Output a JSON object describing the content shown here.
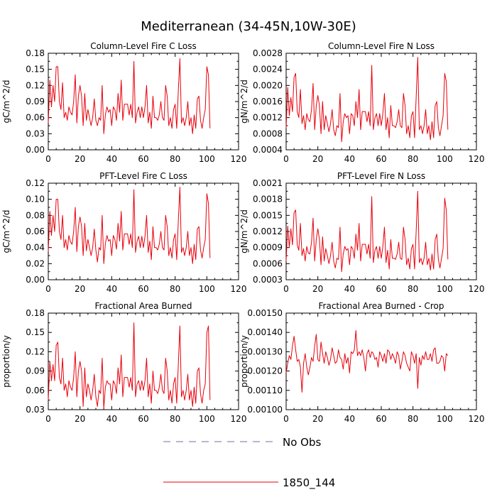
{
  "figure_title": "Mediterranean (34-45N,10W-30E)",
  "legend": {
    "items": [
      {
        "label": "No Obs",
        "style": "dashed",
        "color": "#6f6fa8"
      },
      {
        "label": "1850_144",
        "style": "solid",
        "color": "#e8000b"
      }
    ]
  },
  "colors": {
    "series": "#e8000b",
    "axis": "#000000"
  },
  "chart_data": [
    {
      "type": "line",
      "title": "Column-Level Fire C Loss",
      "ylabel": "gC/m^2/d",
      "xlim": [
        0,
        120
      ],
      "ylim": [
        0.0,
        0.18
      ],
      "xticks": [
        "0",
        "20",
        "40",
        "60",
        "80",
        "100",
        "120"
      ],
      "yticks": [
        "0.00",
        "0.03",
        "0.06",
        "0.09",
        "0.12",
        "0.15",
        "0.18"
      ],
      "series": [
        {
          "values": [
            0.05,
            0.13,
            0.08,
            0.12,
            0.09,
            0.155,
            0.155,
            0.09,
            0.075,
            0.125,
            0.06,
            0.07,
            0.055,
            0.08,
            0.07,
            0.065,
            0.09,
            0.14,
            0.05,
            0.1,
            0.12,
            0.1,
            0.045,
            0.105,
            0.055,
            0.075,
            0.06,
            0.045,
            0.06,
            0.095,
            0.055,
            0.045,
            0.06,
            0.055,
            0.12,
            0.03,
            0.065,
            0.08,
            0.07,
            0.075,
            0.045,
            0.08,
            0.075,
            0.055,
            0.105,
            0.07,
            0.13,
            0.055,
            0.085,
            0.085,
            0.085,
            0.065,
            0.085,
            0.06,
            0.165,
            0.05,
            0.07,
            0.08,
            0.06,
            0.08,
            0.06,
            0.08,
            0.12,
            0.05,
            0.07,
            0.04,
            0.1,
            0.06,
            0.06,
            0.055,
            0.065,
            0.09,
            0.06,
            0.055,
            0.12,
            0.1,
            0.045,
            0.06,
            0.04,
            0.075,
            0.085,
            0.04,
            0.11,
            0.17,
            0.05,
            0.06,
            0.045,
            0.06,
            0.09,
            0.045,
            0.06,
            0.03,
            0.065,
            0.04,
            0.095,
            0.1,
            0.055,
            0.04,
            0.06,
            0.075,
            0.155,
            0.14,
            0.04
          ]
        }
      ]
    },
    {
      "type": "line",
      "title": "Column-Level Fire N Loss",
      "ylabel": "gN/m^2/d",
      "xlim": [
        0,
        120
      ],
      "ylim": [
        0.0004,
        0.0028
      ],
      "xticks": [
        "0",
        "20",
        "40",
        "60",
        "80",
        "100",
        "120"
      ],
      "yticks": [
        "0.0004",
        "0.0008",
        "0.0012",
        "0.0016",
        "0.0020",
        "0.0024",
        "0.0028"
      ],
      "series": [
        {
          "values": [
            0.00095,
            0.00195,
            0.00125,
            0.0017,
            0.00135,
            0.0022,
            0.0023,
            0.00135,
            0.0012,
            0.0019,
            0.00105,
            0.00125,
            0.0009,
            0.0013,
            0.00115,
            0.0011,
            0.0014,
            0.00205,
            0.0009,
            0.0015,
            0.00175,
            0.0015,
            0.0008,
            0.0016,
            0.0009,
            0.00125,
            0.00105,
            0.00085,
            0.00105,
            0.0014,
            0.0009,
            0.00075,
            0.001,
            0.00095,
            0.0018,
            0.0006,
            0.0011,
            0.0013,
            0.0012,
            0.00125,
            0.0008,
            0.0013,
            0.00125,
            0.001,
            0.0016,
            0.0012,
            0.0019,
            0.0009,
            0.00135,
            0.00135,
            0.00135,
            0.0011,
            0.00135,
            0.001,
            0.0025,
            0.0009,
            0.0012,
            0.0013,
            0.001,
            0.0013,
            0.001,
            0.0013,
            0.0018,
            0.0009,
            0.0012,
            0.0007,
            0.0015,
            0.001,
            0.001,
            0.00095,
            0.0011,
            0.0014,
            0.001,
            0.00095,
            0.0018,
            0.0015,
            0.0008,
            0.001,
            0.0007,
            0.00125,
            0.00135,
            0.0007,
            0.0017,
            0.0027,
            0.0009,
            0.001,
            0.0008,
            0.001,
            0.0014,
            0.0008,
            0.001,
            0.00065,
            0.0011,
            0.0007,
            0.0015,
            0.0016,
            0.00095,
            0.00075,
            0.001,
            0.00125,
            0.0023,
            0.0021,
            0.0009
          ]
        }
      ]
    },
    {
      "type": "line",
      "title": "PFT-Level Fire C Loss",
      "ylabel": "gC/m^2/d",
      "xlim": [
        0,
        120
      ],
      "ylim": [
        0.0,
        0.12
      ],
      "xticks": [
        "0",
        "20",
        "40",
        "60",
        "80",
        "100",
        "120"
      ],
      "yticks": [
        "0.00",
        "0.02",
        "0.04",
        "0.06",
        "0.08",
        "0.10",
        "0.12"
      ],
      "series": [
        {
          "values": [
            0.035,
            0.085,
            0.055,
            0.08,
            0.06,
            0.1,
            0.1,
            0.06,
            0.05,
            0.08,
            0.04,
            0.05,
            0.037,
            0.055,
            0.047,
            0.044,
            0.06,
            0.09,
            0.035,
            0.066,
            0.078,
            0.066,
            0.03,
            0.07,
            0.036,
            0.05,
            0.04,
            0.03,
            0.04,
            0.063,
            0.037,
            0.022,
            0.04,
            0.037,
            0.08,
            0.02,
            0.045,
            0.055,
            0.048,
            0.05,
            0.03,
            0.055,
            0.05,
            0.038,
            0.07,
            0.048,
            0.085,
            0.037,
            0.057,
            0.057,
            0.057,
            0.044,
            0.057,
            0.04,
            0.112,
            0.034,
            0.048,
            0.054,
            0.04,
            0.054,
            0.04,
            0.054,
            0.08,
            0.034,
            0.048,
            0.025,
            0.066,
            0.04,
            0.04,
            0.037,
            0.044,
            0.06,
            0.04,
            0.037,
            0.08,
            0.066,
            0.03,
            0.04,
            0.027,
            0.05,
            0.057,
            0.025,
            0.073,
            0.115,
            0.034,
            0.04,
            0.03,
            0.04,
            0.06,
            0.03,
            0.04,
            0.02,
            0.044,
            0.025,
            0.063,
            0.066,
            0.037,
            0.027,
            0.04,
            0.05,
            0.107,
            0.095,
            0.027
          ]
        }
      ]
    },
    {
      "type": "line",
      "title": "PFT-Level Fire N Loss",
      "ylabel": "gN/m^2/d",
      "xlim": [
        0,
        120
      ],
      "ylim": [
        0.0003,
        0.0021
      ],
      "xticks": [
        "0",
        "20",
        "40",
        "60",
        "80",
        "100",
        "120"
      ],
      "yticks": [
        "0.0003",
        "0.0006",
        "0.0009",
        "0.0012",
        "0.0015",
        "0.0018",
        "0.0021"
      ],
      "series": [
        {
          "values": [
            0.00065,
            0.0013,
            0.0009,
            0.00125,
            0.00095,
            0.00155,
            0.0016,
            0.00095,
            0.00085,
            0.00135,
            0.00075,
            0.00088,
            0.00065,
            0.00092,
            0.0008,
            0.00078,
            0.001,
            0.00145,
            0.00065,
            0.00105,
            0.00125,
            0.00105,
            0.00058,
            0.0011,
            0.00065,
            0.00088,
            0.00075,
            0.0006,
            0.00075,
            0.001,
            0.00065,
            0.00052,
            0.0007,
            0.00068,
            0.00128,
            0.00045,
            0.00078,
            0.00092,
            0.00085,
            0.00088,
            0.00058,
            0.00092,
            0.00088,
            0.0007,
            0.00115,
            0.00085,
            0.00135,
            0.00065,
            0.00096,
            0.00096,
            0.00096,
            0.00078,
            0.00096,
            0.0007,
            0.00185,
            0.00062,
            0.00085,
            0.00092,
            0.0007,
            0.00092,
            0.0007,
            0.00092,
            0.00128,
            0.00062,
            0.00085,
            0.0005,
            0.00105,
            0.0007,
            0.0007,
            0.00068,
            0.00078,
            0.001,
            0.0007,
            0.00068,
            0.00128,
            0.00105,
            0.00058,
            0.0007,
            0.0005,
            0.00088,
            0.00096,
            0.0005,
            0.0012,
            0.00195,
            0.00062,
            0.0007,
            0.00058,
            0.0007,
            0.001,
            0.00058,
            0.0007,
            0.00048,
            0.00078,
            0.0005,
            0.00105,
            0.00115,
            0.00068,
            0.00052,
            0.0007,
            0.00088,
            0.00182,
            0.0016,
            0.00068
          ]
        }
      ]
    },
    {
      "type": "line",
      "title": "Fractional Area Burned",
      "ylabel": "proportion/y",
      "xlim": [
        0,
        120
      ],
      "ylim": [
        0.03,
        0.18
      ],
      "xticks": [
        "0",
        "20",
        "40",
        "60",
        "80",
        "100",
        "120"
      ],
      "yticks": [
        "0.03",
        "0.06",
        "0.09",
        "0.12",
        "0.15",
        "0.18"
      ],
      "series": [
        {
          "values": [
            0.045,
            0.105,
            0.075,
            0.1,
            0.075,
            0.13,
            0.135,
            0.08,
            0.07,
            0.11,
            0.06,
            0.07,
            0.05,
            0.075,
            0.065,
            0.06,
            0.08,
            0.12,
            0.05,
            0.09,
            0.105,
            0.09,
            0.035,
            0.095,
            0.05,
            0.07,
            0.06,
            0.045,
            0.06,
            0.085,
            0.05,
            0.035,
            0.06,
            0.055,
            0.11,
            0.032,
            0.065,
            0.075,
            0.07,
            0.07,
            0.045,
            0.075,
            0.07,
            0.055,
            0.095,
            0.07,
            0.115,
            0.05,
            0.08,
            0.08,
            0.08,
            0.065,
            0.08,
            0.06,
            0.165,
            0.05,
            0.07,
            0.075,
            0.06,
            0.075,
            0.06,
            0.075,
            0.11,
            0.05,
            0.07,
            0.04,
            0.09,
            0.06,
            0.06,
            0.055,
            0.065,
            0.085,
            0.06,
            0.055,
            0.11,
            0.09,
            0.045,
            0.06,
            0.04,
            0.07,
            0.08,
            0.04,
            0.1,
            0.16,
            0.05,
            0.06,
            0.045,
            0.06,
            0.085,
            0.045,
            0.06,
            0.035,
            0.065,
            0.04,
            0.09,
            0.095,
            0.055,
            0.04,
            0.06,
            0.07,
            0.15,
            0.16,
            0.045
          ]
        }
      ]
    },
    {
      "type": "line",
      "title": "Fractional Area Burned - Crop",
      "ylabel": "proportion/y",
      "xlim": [
        0,
        120
      ],
      "ylim": [
        0.001,
        0.0015
      ],
      "xticks": [
        "0",
        "20",
        "40",
        "60",
        "80",
        "100",
        "120"
      ],
      "yticks": [
        "0.00100",
        "0.00110",
        "0.00120",
        "0.00130",
        "0.00140",
        "0.00150"
      ],
      "series": [
        {
          "values": [
            0.00119,
            0.00124,
            0.00128,
            0.00126,
            0.00133,
            0.00138,
            0.00131,
            0.00125,
            0.00126,
            0.00122,
            0.00109,
            0.00124,
            0.00129,
            0.00122,
            0.00118,
            0.00122,
            0.00127,
            0.00125,
            0.00133,
            0.00139,
            0.00126,
            0.00125,
            0.00135,
            0.00129,
            0.00124,
            0.0013,
            0.00127,
            0.00123,
            0.00126,
            0.00132,
            0.00128,
            0.00124,
            0.00125,
            0.00131,
            0.00127,
            0.00126,
            0.00121,
            0.00129,
            0.00124,
            0.00127,
            0.00119,
            0.0013,
            0.00129,
            0.00131,
            0.00141,
            0.00128,
            0.0013,
            0.00128,
            0.00131,
            0.00127,
            0.0012,
            0.00129,
            0.00131,
            0.00127,
            0.0013,
            0.00129,
            0.00126,
            0.00127,
            0.00122,
            0.0013,
            0.00128,
            0.00125,
            0.00129,
            0.00124,
            0.00131,
            0.0013,
            0.00126,
            0.00129,
            0.00127,
            0.00124,
            0.0013,
            0.00128,
            0.00121,
            0.00125,
            0.0013,
            0.00128,
            0.00124,
            0.00122,
            0.0012,
            0.0013,
            0.00128,
            0.00124,
            0.00129,
            0.00111,
            0.00127,
            0.00123,
            0.00128,
            0.00126,
            0.0013,
            0.00126,
            0.00126,
            0.00129,
            0.00125,
            0.00131,
            0.00132,
            0.00124,
            0.00124,
            0.00125,
            0.00128,
            0.00127,
            0.0012,
            0.00129,
            0.00128
          ]
        }
      ]
    }
  ]
}
